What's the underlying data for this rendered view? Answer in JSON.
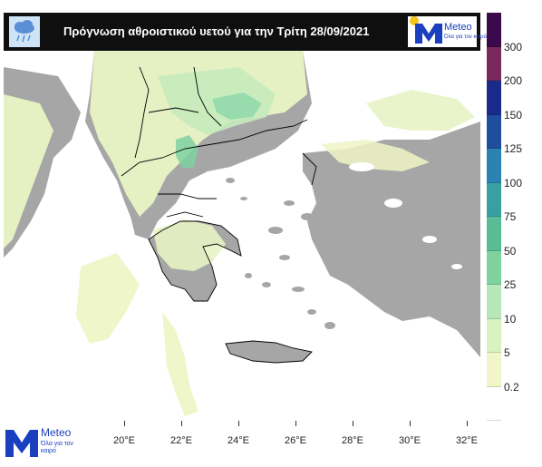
{
  "header": {
    "title": "Πρόγνωση αθροιστικού υετού για την Τρίτη 28/09/2021",
    "rain_icon": "cloud-rain-icon"
  },
  "brand": {
    "name": "Meteo",
    "tagline": "Όλα για τον καιρό",
    "accent": "#1a3fbf",
    "dot_color": "#f5c518"
  },
  "footer": {
    "name": "Meteo",
    "tagline": "Όλα για τον καιρό"
  },
  "legend": {
    "labels": [
      "0.2",
      "5",
      "10",
      "25",
      "50",
      "75",
      "100",
      "125",
      "150",
      "200",
      "300"
    ],
    "colors": [
      "#ffffff",
      "#f2f5c9",
      "#d9f2c2",
      "#b7e6b8",
      "#7fd1a0",
      "#58bd94",
      "#3a9fa0",
      "#2a82b0",
      "#1e4f9e",
      "#1a2a8a",
      "#7a2a5a",
      "#3a0a4a"
    ]
  },
  "x_axis": {
    "labels": [
      "20°E",
      "22°E",
      "24°E",
      "26°E",
      "28°E",
      "30°E",
      "32°E"
    ]
  },
  "map": {
    "land_color": "#a6a6a6",
    "sea_color": "#ffffff",
    "border_color": "#000000"
  }
}
